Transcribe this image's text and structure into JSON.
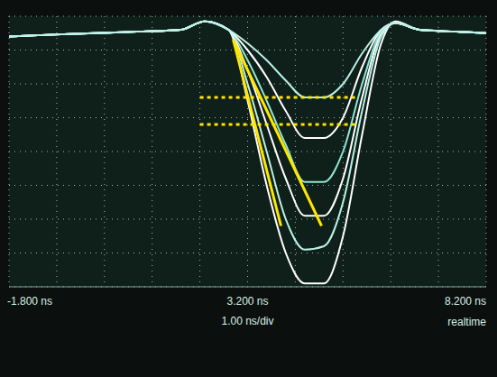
{
  "chart_data": {
    "type": "line",
    "x": [
      -1.8,
      -1,
      0,
      1,
      1.8,
      2.3,
      2.8,
      3.2,
      3.6,
      4.0,
      4.4,
      4.8,
      5.2,
      5.6,
      6.0,
      6.3,
      6.8,
      7.5,
      8.2
    ],
    "series": [
      {
        "color": "#ffffff",
        "line_style": "solid",
        "values": [
          3.4,
          3.45,
          3.5,
          3.55,
          3.6,
          3.85,
          3.6,
          1.5,
          -1.0,
          -3.0,
          -3.9,
          -3.9,
          -2.5,
          0.5,
          3.2,
          3.85,
          3.6,
          3.55,
          3.5
        ]
      },
      {
        "color": "#b8f2e6",
        "line_style": "solid",
        "values": [
          3.4,
          3.45,
          3.5,
          3.55,
          3.6,
          3.85,
          3.6,
          2.0,
          0.0,
          -2.0,
          -2.9,
          -2.8,
          -1.5,
          1.2,
          3.4,
          3.8,
          3.6,
          3.55,
          3.5
        ]
      },
      {
        "color": "#ffffff",
        "line_style": "solid",
        "values": [
          3.4,
          3.45,
          3.5,
          3.55,
          3.6,
          3.85,
          3.6,
          2.4,
          0.8,
          -0.8,
          -1.9,
          -1.9,
          -0.8,
          1.6,
          3.5,
          3.8,
          3.6,
          3.55,
          3.5
        ]
      },
      {
        "color": "#8ee6d4",
        "line_style": "solid",
        "values": [
          3.4,
          3.45,
          3.5,
          3.55,
          3.6,
          3.85,
          3.6,
          2.7,
          1.5,
          0.2,
          -0.9,
          -0.9,
          0.0,
          2.0,
          3.55,
          3.8,
          3.6,
          3.55,
          3.5
        ]
      },
      {
        "color": "#ffffff",
        "line_style": "solid",
        "values": [
          3.4,
          3.45,
          3.5,
          3.55,
          3.6,
          3.85,
          3.6,
          3.0,
          2.2,
          1.2,
          0.4,
          0.4,
          1.0,
          2.5,
          3.6,
          3.8,
          3.6,
          3.55,
          3.5
        ]
      },
      {
        "color": "#b8f2e6",
        "line_style": "solid",
        "values": [
          3.4,
          3.45,
          3.5,
          3.55,
          3.6,
          3.85,
          3.6,
          3.2,
          2.7,
          2.1,
          1.6,
          1.6,
          2.0,
          2.9,
          3.6,
          3.8,
          3.6,
          3.55,
          3.5
        ]
      },
      {
        "color": "#ffe600",
        "line_style": "dotted",
        "x": [
          2.2,
          5.5
        ],
        "values": [
          1.6,
          1.6
        ]
      },
      {
        "color": "#ffe600",
        "line_style": "dotted",
        "x": [
          2.2,
          5.5
        ],
        "values": [
          0.8,
          0.8
        ]
      },
      {
        "color": "#ffe600",
        "line_style": "solid",
        "x": [
          2.9,
          3.9
        ],
        "values": [
          3.3,
          -2.2
        ]
      },
      {
        "color": "#ffe600",
        "line_style": "solid",
        "x": [
          2.9,
          4.75
        ],
        "values": [
          3.3,
          -2.2
        ]
      }
    ],
    "xlim": [
      -1.8,
      8.2
    ],
    "ylim": [
      -4,
      4
    ],
    "xticks": [
      {
        "value": -1.8,
        "label": "-1.800 ns"
      },
      {
        "value": 3.2,
        "label": "3.200 ns"
      },
      {
        "value": 8.2,
        "label": "8.200 ns"
      }
    ],
    "yticks": [
      -4,
      -3,
      -2,
      -1,
      0,
      1,
      2,
      3,
      4
    ],
    "tick_labels": "x",
    "grid": true,
    "x_label": "1.00 ns/div",
    "annotations": [
      "realtime"
    ]
  }
}
